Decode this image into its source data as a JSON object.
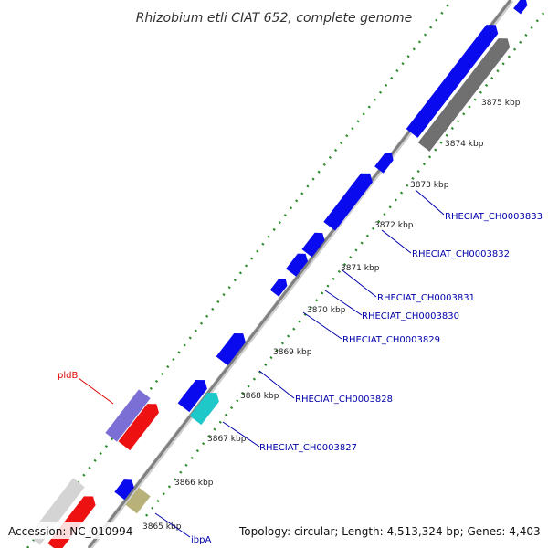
{
  "title": "Rhizobium etli CIAT 652, complete genome",
  "accession": "Accession: NC_010994",
  "topology": "Topology: circular; Length: 4,513,324 bp; Genes: 4,403",
  "ticks": {
    "t3865": "3865 kbp",
    "t3866": "3866 kbp",
    "t3867": "3867 kbp",
    "t3868": "3868 kbp",
    "t3869": "3869 kbp",
    "t3870": "3870 kbp",
    "t3871": "3871 kbp",
    "t3872": "3872 kbp",
    "t3873": "3873 kbp",
    "t3874": "3874 kbp",
    "t3875": "3875 kbp"
  },
  "genes": {
    "plda": "pldB",
    "ibpa": "ibpA",
    "ch3827": "RHECIAT_CH0003827",
    "ch3828": "RHECIAT_CH0003828",
    "ch3829": "RHECIAT_CH0003829",
    "ch3830": "RHECIAT_CH0003830",
    "ch3831": "RHECIAT_CH0003831",
    "ch3832": "RHECIAT_CH0003832",
    "ch3833": "RHECIAT_CH0003833"
  },
  "colors": {
    "backbone": "#8a8a8a",
    "forward_gene": "#0a0aee",
    "red_gene": "#ee1111",
    "purple_gene": "#7b6fd6",
    "cyan_gene": "#1ec8c8",
    "olive_gene": "#b8b27a",
    "gray_gene": "#707070",
    "lightgray_gene": "#d4d4d4",
    "gc_dots": "#2a8a2a",
    "label_blue": "#0000aa",
    "label_red": "#dd0000"
  }
}
